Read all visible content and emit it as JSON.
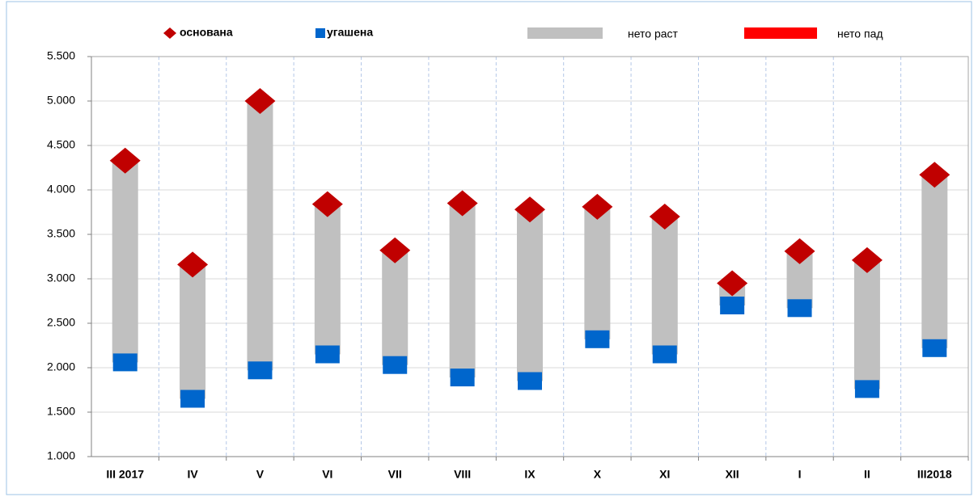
{
  "chart_data": {
    "type": "range",
    "categories": [
      "III 2017",
      "IV",
      "V",
      "VI",
      "VII",
      "VIII",
      "IX",
      "X",
      "XI",
      "XII",
      "I",
      "II",
      "III2018"
    ],
    "series": [
      {
        "name": "основана",
        "color": "#c00000",
        "marker": "diamond",
        "values": [
          4330,
          3160,
          5000,
          3840,
          3320,
          3850,
          3780,
          3810,
          3700,
          2950,
          3310,
          3210,
          4170
        ]
      },
      {
        "name": "угашена",
        "color": "#0066cc",
        "marker": "square",
        "values": [
          2060,
          1650,
          1970,
          2150,
          2030,
          1890,
          1850,
          2320,
          2150,
          2700,
          2670,
          1760,
          2220
        ]
      }
    ],
    "range_legend": [
      {
        "name": "нето раст",
        "color": "#c0c0c0",
        "label_color": "#404040"
      },
      {
        "name": "нето пад",
        "color": "#ff0000",
        "label_color": "#ff0000"
      }
    ],
    "ylim": [
      1000,
      5500
    ],
    "yticks": [
      {
        "value": 1000,
        "label": "1.000"
      },
      {
        "value": 1500,
        "label": "1.500"
      },
      {
        "value": 2000,
        "label": "2.000"
      },
      {
        "value": 2500,
        "label": "2.500"
      },
      {
        "value": 3000,
        "label": "3.000"
      },
      {
        "value": 3500,
        "label": "3.500"
      },
      {
        "value": 4000,
        "label": "4.000"
      },
      {
        "value": 4500,
        "label": "4.500"
      },
      {
        "value": 5000,
        "label": "5.000"
      },
      {
        "value": 5500,
        "label": "5.500"
      }
    ],
    "grid": true
  }
}
